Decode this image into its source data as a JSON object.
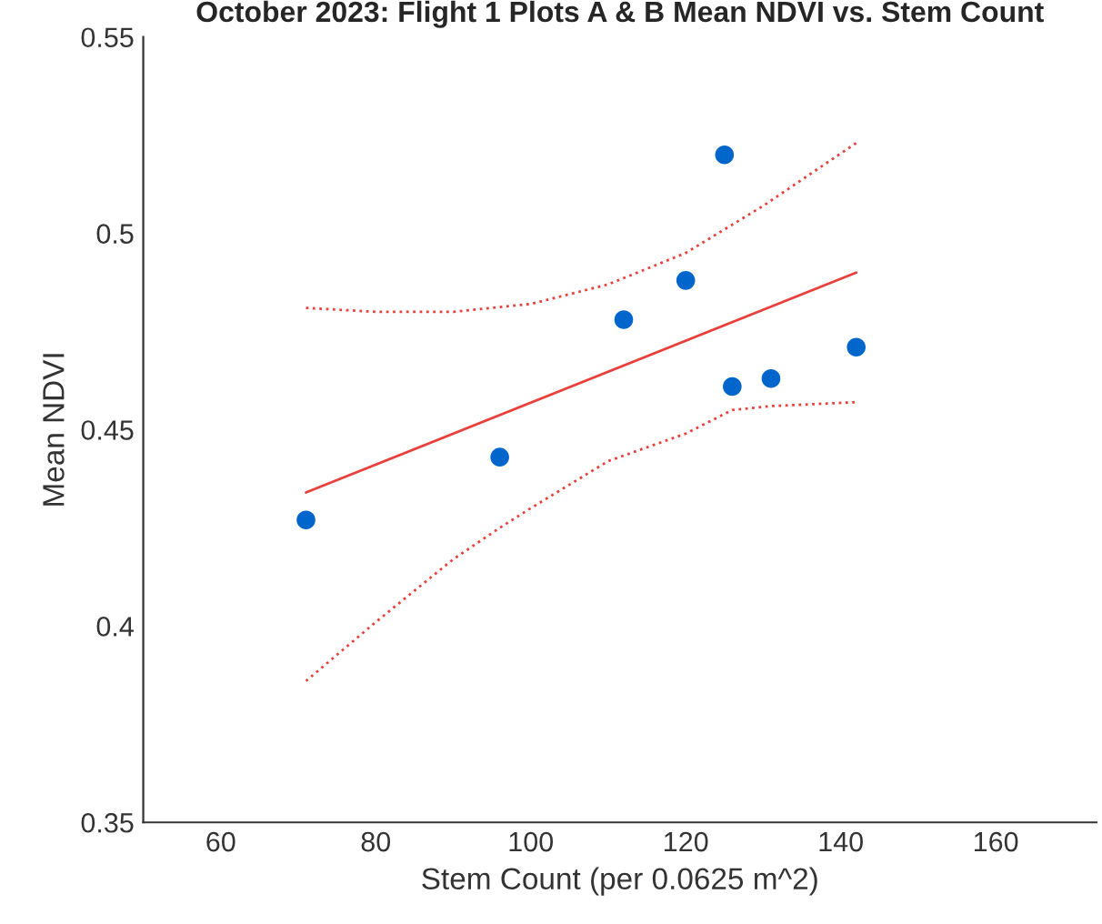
{
  "chart_data": {
    "type": "scatter",
    "title": "October 2023: Flight 1 Plots A & B Mean NDVI vs. Stem Count",
    "xlabel": "Stem Count (per 0.0625 m^2)",
    "ylabel": "Mean NDVI",
    "xlim": [
      50,
      173
    ],
    "xticks": [
      60,
      80,
      100,
      120,
      140,
      160
    ],
    "ylim": [
      0.35,
      0.55
    ],
    "yticks": [
      0.35,
      0.4,
      0.45,
      0.5,
      0.55
    ],
    "grid": false,
    "legend": false,
    "series": [
      {
        "color": "#0066cc",
        "marker": "circle",
        "x": [
          71,
          96,
          112,
          120,
          125,
          126,
          131,
          142
        ],
        "values": [
          0.427,
          0.443,
          0.478,
          0.488,
          0.52,
          0.461,
          0.463,
          0.471
        ]
      },
      {
        "type": "line",
        "color": "#e8403c",
        "line_style": "solid",
        "marker": "none",
        "x": [
          71,
          142
        ],
        "values": [
          0.434,
          0.49
        ]
      },
      {
        "type": "line",
        "color": "#e8403c",
        "line_style": "dotted",
        "marker": "none",
        "x": [
          71,
          80,
          90,
          100,
          110,
          120,
          130,
          142
        ],
        "values": [
          0.481,
          0.48,
          0.48,
          0.482,
          0.487,
          0.495,
          0.507,
          0.523
        ]
      },
      {
        "type": "line",
        "color": "#e8403c",
        "line_style": "dotted",
        "marker": "none",
        "x": [
          71,
          80,
          90,
          96,
          100,
          110,
          120,
          126,
          131,
          142
        ],
        "values": [
          0.386,
          0.401,
          0.417,
          0.425,
          0.43,
          0.442,
          0.449,
          0.455,
          0.456,
          0.457
        ]
      }
    ]
  }
}
